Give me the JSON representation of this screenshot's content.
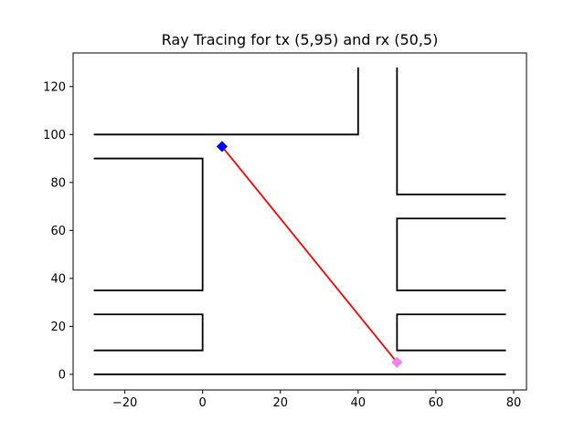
{
  "chart_data": {
    "type": "line",
    "title": "Ray Tracing for tx (5,95) and rx (50,5)",
    "xlabel": "",
    "ylabel": "",
    "xlim": [
      -33.3,
      83.3
    ],
    "ylim": [
      -6.5,
      134.0
    ],
    "xticks": [
      -20,
      0,
      20,
      40,
      60,
      80
    ],
    "yticks": [
      0,
      20,
      40,
      60,
      80,
      100,
      120
    ],
    "grid": false,
    "legend": "none",
    "colors": {
      "walls": "#000000",
      "ray": "#ff0000",
      "tx": "#0000ff",
      "rx": "#ee82ee"
    },
    "walls": [
      [
        [
          -28,
          100
        ],
        [
          40,
          100
        ],
        [
          40,
          128
        ]
      ],
      [
        [
          50,
          128
        ],
        [
          50,
          75
        ],
        [
          78,
          75
        ]
      ],
      [
        [
          -28,
          90
        ],
        [
          0,
          90
        ],
        [
          0,
          35
        ],
        [
          -28,
          35
        ]
      ],
      [
        [
          -28,
          25
        ],
        [
          0,
          25
        ],
        [
          0,
          10
        ],
        [
          -28,
          10
        ]
      ],
      [
        [
          78,
          65
        ],
        [
          50,
          65
        ],
        [
          50,
          35
        ],
        [
          78,
          35
        ]
      ],
      [
        [
          78,
          25
        ],
        [
          50,
          25
        ],
        [
          50,
          10
        ],
        [
          78,
          10
        ]
      ],
      [
        [
          -28,
          0
        ],
        [
          78,
          0
        ]
      ]
    ],
    "ray": [
      [
        5,
        95
      ],
      [
        50,
        5
      ]
    ],
    "tx": [
      5,
      95
    ],
    "rx": [
      50,
      5
    ]
  }
}
